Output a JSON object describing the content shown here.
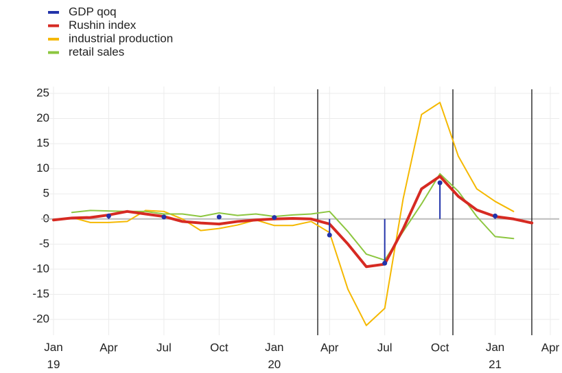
{
  "chart_data": {
    "type": "line",
    "x": [
      "2019-01",
      "2019-02",
      "2019-03",
      "2019-04",
      "2019-05",
      "2019-06",
      "2019-07",
      "2019-08",
      "2019-09",
      "2019-10",
      "2019-11",
      "2019-12",
      "2020-01",
      "2020-02",
      "2020-03",
      "2020-04",
      "2020-05",
      "2020-06",
      "2020-07",
      "2020-08",
      "2020-09",
      "2020-10",
      "2020-11",
      "2020-12",
      "2021-01",
      "2021-02",
      "2021-03"
    ],
    "series": [
      {
        "name": "GDP qoq",
        "color": "#2233aa",
        "kind": "stem",
        "values": [
          null,
          null,
          null,
          0.6,
          null,
          null,
          0.4,
          null,
          null,
          0.4,
          null,
          null,
          0.3,
          null,
          null,
          -3.2,
          null,
          null,
          -8.8,
          null,
          null,
          7.2,
          null,
          null,
          0.6,
          null,
          null
        ]
      },
      {
        "name": "Rushin index",
        "color": "#d62a22",
        "kind": "line",
        "values": [
          -0.2,
          0.2,
          0.3,
          0.8,
          1.5,
          1.0,
          0.5,
          -0.5,
          -0.8,
          -1.0,
          -0.5,
          -0.2,
          0.0,
          0.1,
          0.0,
          -1.0,
          -5,
          -9.5,
          -9.0,
          -2,
          6,
          8.5,
          4.5,
          1.8,
          0.5,
          0.0,
          -0.8
        ]
      },
      {
        "name": "industrial production",
        "color": "#f5b800",
        "kind": "line",
        "values": [
          null,
          0.3,
          -0.7,
          -0.7,
          -0.5,
          1.7,
          1.5,
          0,
          -2.3,
          -1.9,
          -1.2,
          -0.2,
          -1.3,
          -1.3,
          -0.5,
          -2.7,
          -14,
          -21.2,
          -17.8,
          4,
          20.8,
          23.2,
          12.5,
          6,
          3.5,
          1.5,
          null
        ]
      },
      {
        "name": "retail sales",
        "color": "#8cc63f",
        "kind": "line",
        "values": [
          null,
          1.3,
          1.7,
          1.6,
          1.5,
          1.5,
          1.0,
          1.0,
          0.5,
          1.2,
          0.7,
          1.0,
          0.5,
          0.8,
          1.0,
          1.5,
          -2.5,
          -7,
          -8.2,
          -2.5,
          3,
          9,
          5.5,
          0.5,
          -3.5,
          -3.9,
          null
        ]
      }
    ],
    "xlim": [
      "2019-01",
      "2021-04"
    ],
    "xticks": [
      {
        "value": "2019-01",
        "label": "Jan\n19"
      },
      {
        "value": "2019-04",
        "label": "Apr"
      },
      {
        "value": "2019-07",
        "label": "Jul"
      },
      {
        "value": "2019-10",
        "label": "Oct"
      },
      {
        "value": "2020-01",
        "label": "Jan\n20"
      },
      {
        "value": "2020-04",
        "label": "Apr"
      },
      {
        "value": "2020-07",
        "label": "Jul"
      },
      {
        "value": "2020-10",
        "label": "Oct"
      },
      {
        "value": "2021-01",
        "label": "Jan\n21"
      },
      {
        "value": "2021-04",
        "label": "Apr"
      }
    ],
    "ylim": [
      -20,
      25
    ],
    "yticks": [
      -20,
      -15,
      -10,
      -5,
      0,
      5,
      10,
      15,
      20,
      25
    ],
    "grid": true,
    "legend": "top-left"
  }
}
